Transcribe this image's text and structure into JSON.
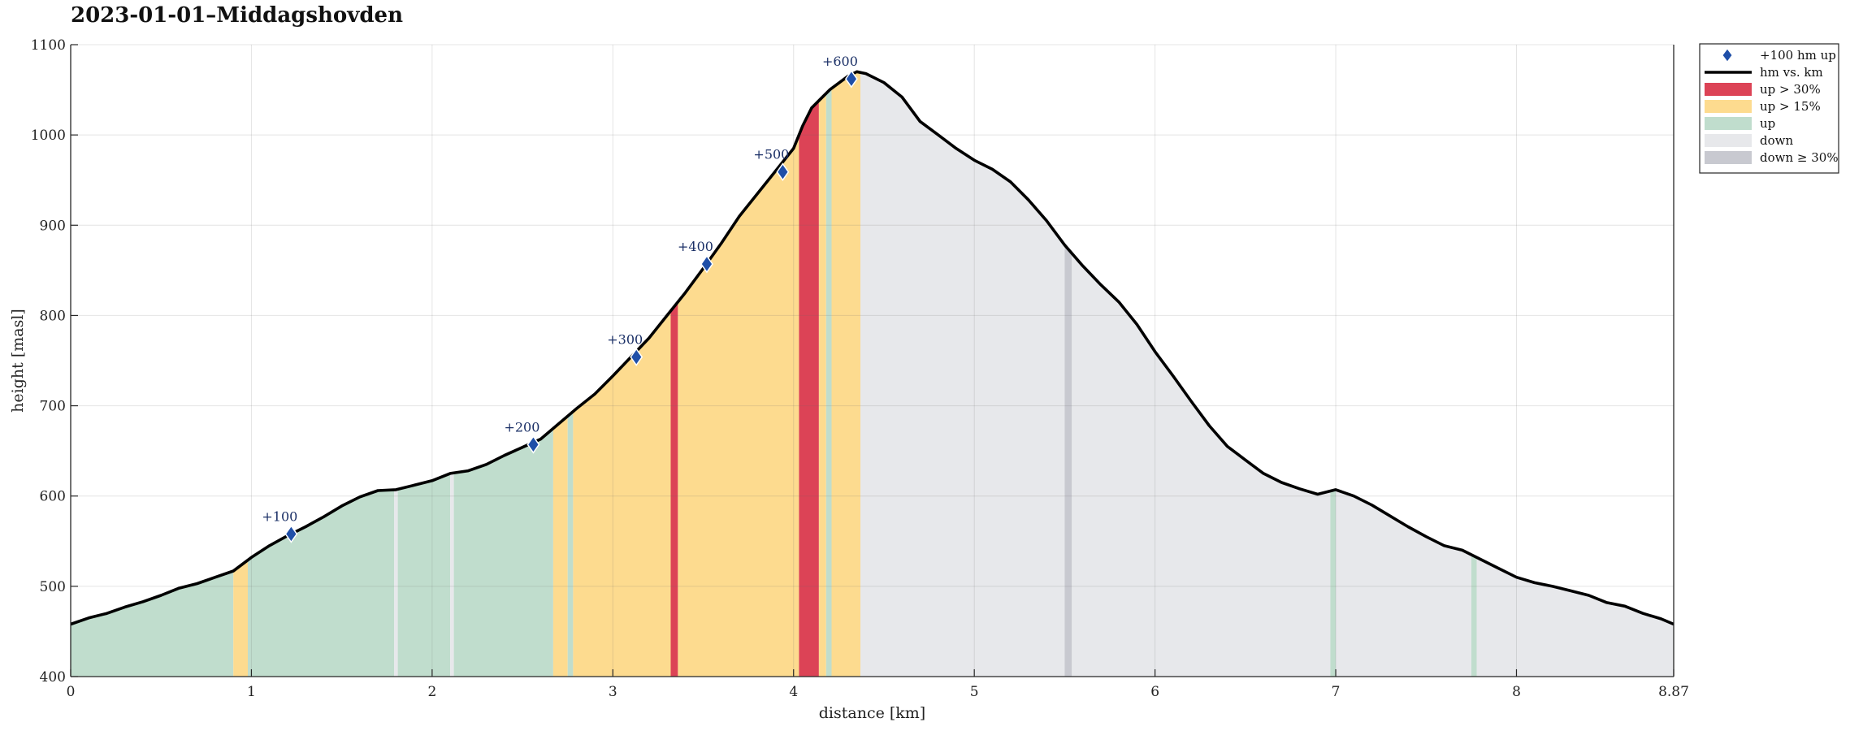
{
  "chart_data": {
    "type": "area",
    "title": "2023-01-01–Middagshovden",
    "xlabel": "distance [km]",
    "ylabel": "height [masl]",
    "xlim": [
      0,
      8.87
    ],
    "ylim": [
      400,
      1100
    ],
    "xticks": [
      "0",
      "1",
      "2",
      "3",
      "4",
      "5",
      "6",
      "7",
      "8",
      "8.87"
    ],
    "xtick_values": [
      0,
      1,
      2,
      3,
      4,
      5,
      6,
      7,
      8,
      8.87
    ],
    "yticks": [
      "400",
      "500",
      "600",
      "700",
      "800",
      "900",
      "1000",
      "1100"
    ],
    "ytick_values": [
      400,
      500,
      600,
      700,
      800,
      900,
      1000,
      1100
    ],
    "grid": true,
    "legend_position": "outside top-right",
    "colors": {
      "profile_line": "#000000",
      "marker": "#1f4fa8",
      "up_gt_30": "#dc4356",
      "up_gt_15": "#fddb8f",
      "up": "#c0ddcd",
      "down": "#e7e8eb",
      "down_ge_30": "#c8c9d0"
    },
    "legend": [
      {
        "key": "marker",
        "label": "+100 hm up"
      },
      {
        "key": "profile_line",
        "label": "hm vs. km"
      },
      {
        "key": "up_gt_30",
        "label": "up > 30%"
      },
      {
        "key": "up_gt_15",
        "label": "up > 15%"
      },
      {
        "key": "up",
        "label": "up"
      },
      {
        "key": "down",
        "label": "down"
      },
      {
        "key": "down_ge_30",
        "label": "down ≥ 30%"
      }
    ],
    "profile": {
      "x": [
        0,
        0.1,
        0.2,
        0.3,
        0.4,
        0.5,
        0.6,
        0.7,
        0.8,
        0.9,
        1.0,
        1.1,
        1.2,
        1.3,
        1.4,
        1.5,
        1.6,
        1.7,
        1.8,
        1.9,
        2.0,
        2.1,
        2.2,
        2.3,
        2.4,
        2.5,
        2.6,
        2.7,
        2.8,
        2.9,
        3.0,
        3.1,
        3.2,
        3.3,
        3.4,
        3.5,
        3.6,
        3.7,
        3.8,
        3.9,
        4.0,
        4.05,
        4.1,
        4.15,
        4.2,
        4.3,
        4.35,
        4.4,
        4.5,
        4.6,
        4.7,
        4.8,
        4.9,
        5.0,
        5.1,
        5.2,
        5.3,
        5.4,
        5.5,
        5.6,
        5.7,
        5.8,
        5.9,
        6.0,
        6.1,
        6.2,
        6.3,
        6.4,
        6.5,
        6.6,
        6.7,
        6.8,
        6.9,
        7.0,
        7.1,
        7.2,
        7.3,
        7.4,
        7.5,
        7.6,
        7.7,
        7.8,
        7.9,
        8.0,
        8.1,
        8.2,
        8.3,
        8.4,
        8.5,
        8.6,
        8.7,
        8.8,
        8.87
      ],
      "y": [
        458,
        465,
        470,
        477,
        483,
        490,
        498,
        503,
        510,
        517,
        532,
        545,
        556,
        566,
        577,
        589,
        599,
        606,
        607,
        612,
        617,
        625,
        628,
        635,
        645,
        654,
        663,
        680,
        697,
        713,
        733,
        754,
        775,
        800,
        825,
        852,
        880,
        910,
        935,
        960,
        985,
        1010,
        1030,
        1040,
        1050,
        1065,
        1070,
        1068,
        1058,
        1042,
        1015,
        1000,
        985,
        972,
        962,
        948,
        928,
        905,
        878,
        855,
        834,
        815,
        790,
        760,
        733,
        705,
        678,
        655,
        640,
        625,
        615,
        608,
        602,
        607,
        600,
        590,
        578,
        566,
        555,
        545,
        540,
        530,
        520,
        510,
        504,
        500,
        495,
        490,
        482,
        478,
        470,
        464,
        458
      ]
    },
    "segments": [
      {
        "type": "up",
        "from": 0,
        "to": 0.9
      },
      {
        "type": "up_gt_15",
        "from": 0.9,
        "to": 0.98
      },
      {
        "type": "up",
        "from": 0.98,
        "to": 1.79
      },
      {
        "type": "down",
        "from": 1.79,
        "to": 1.81
      },
      {
        "type": "up",
        "from": 1.81,
        "to": 2.1
      },
      {
        "type": "down",
        "from": 2.1,
        "to": 2.12
      },
      {
        "type": "up",
        "from": 2.12,
        "to": 2.67
      },
      {
        "type": "up_gt_15",
        "from": 2.67,
        "to": 2.75
      },
      {
        "type": "up",
        "from": 2.75,
        "to": 2.78
      },
      {
        "type": "up_gt_15",
        "from": 2.78,
        "to": 3.32
      },
      {
        "type": "up_gt_30",
        "from": 3.32,
        "to": 3.36
      },
      {
        "type": "up_gt_15",
        "from": 3.36,
        "to": 4.03
      },
      {
        "type": "up_gt_30",
        "from": 4.03,
        "to": 4.14
      },
      {
        "type": "up_gt_15",
        "from": 4.14,
        "to": 4.18
      },
      {
        "type": "up",
        "from": 4.18,
        "to": 4.21
      },
      {
        "type": "up_gt_15",
        "from": 4.21,
        "to": 4.37
      },
      {
        "type": "down",
        "from": 4.37,
        "to": 5.5
      },
      {
        "type": "down_ge_30",
        "from": 5.5,
        "to": 5.54
      },
      {
        "type": "down",
        "from": 5.54,
        "to": 6.97
      },
      {
        "type": "up",
        "from": 6.97,
        "to": 7.0
      },
      {
        "type": "down",
        "from": 7.0,
        "to": 7.75
      },
      {
        "type": "up",
        "from": 7.75,
        "to": 7.78
      },
      {
        "type": "down",
        "from": 7.78,
        "to": 8.87
      }
    ],
    "markers": [
      {
        "label": "+100",
        "x": 1.22,
        "y": 558
      },
      {
        "label": "+200",
        "x": 2.56,
        "y": 657
      },
      {
        "label": "+300",
        "x": 3.13,
        "y": 754
      },
      {
        "label": "+400",
        "x": 3.52,
        "y": 857
      },
      {
        "label": "+500",
        "x": 3.94,
        "y": 959
      },
      {
        "label": "+600",
        "x": 4.32,
        "y": 1062
      }
    ]
  }
}
